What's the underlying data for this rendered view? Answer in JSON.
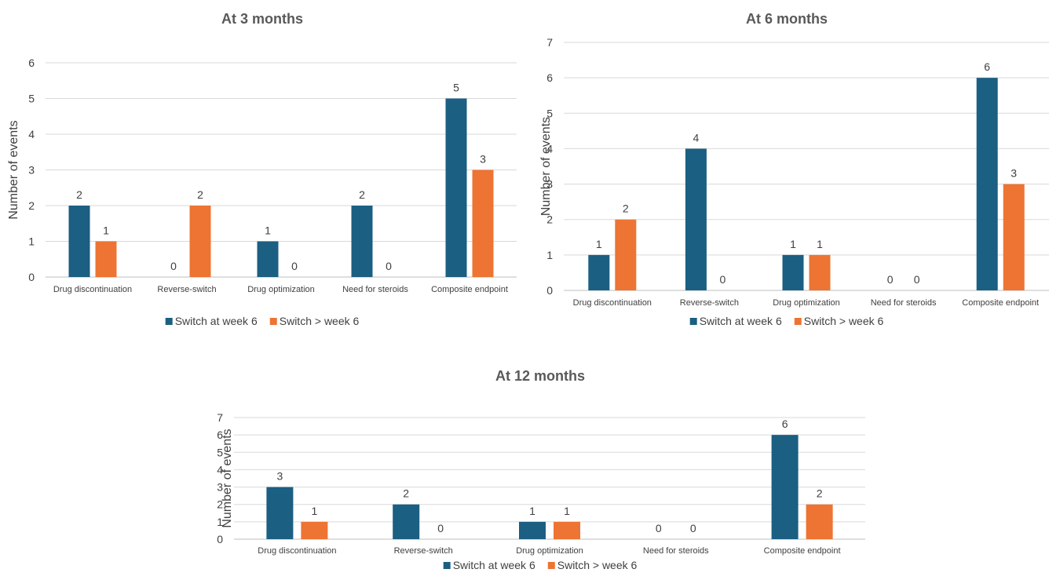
{
  "colors": {
    "series_1": "#1b5f82",
    "series_2": "#ed7433"
  },
  "chart_data": [
    {
      "type": "bar",
      "title": "At 3 months",
      "ylabel": "Number of events",
      "ylim": [
        0,
        6
      ],
      "y_ticks": [
        "0",
        "1",
        "2",
        "3",
        "4",
        "5",
        "6"
      ],
      "categories": [
        "Drug discontinuation",
        "Reverse-switch",
        "Drug optimization",
        "Need for steroids",
        "Composite endpoint"
      ],
      "series": [
        {
          "name": "Switch at week 6",
          "values": [
            2,
            0,
            1,
            2,
            5
          ]
        },
        {
          "name": "Switch > week 6",
          "values": [
            1,
            2,
            0,
            0,
            3
          ]
        }
      ],
      "data_labels": [
        [
          "2",
          "0",
          "1",
          "2",
          "5"
        ],
        [
          "1",
          "2",
          "0",
          "0",
          "3"
        ]
      ],
      "grid": true,
      "legend": "bottom"
    },
    {
      "type": "bar",
      "title": "At 6 months",
      "ylabel": "Number of events",
      "ylim": [
        0,
        7
      ],
      "y_ticks": [
        "0",
        "1",
        "2",
        "3",
        "4",
        "5",
        "6",
        "7"
      ],
      "categories": [
        "Drug discontinuation",
        "Reverse-switch",
        "Drug optimization",
        "Need for steroids",
        "Composite endpoint"
      ],
      "series": [
        {
          "name": "Switch at week 6",
          "values": [
            1,
            4,
            1,
            0,
            6
          ]
        },
        {
          "name": "Switch > week 6",
          "values": [
            2,
            0,
            1,
            0,
            3
          ]
        }
      ],
      "data_labels": [
        [
          "1",
          "4",
          "1",
          "0",
          "6"
        ],
        [
          "2",
          "0",
          "1",
          "0",
          "3"
        ]
      ],
      "grid": true,
      "legend": "bottom"
    },
    {
      "type": "bar",
      "title": "At 12 months",
      "ylabel": "Number of events",
      "ylim": [
        0,
        7
      ],
      "y_ticks": [
        "0",
        "1",
        "2",
        "3",
        "4",
        "5",
        "6",
        "7"
      ],
      "categories": [
        "Drug discontinuation",
        "Reverse-switch",
        "Drug optimization",
        "Need for steroids",
        "Composite endpoint"
      ],
      "series": [
        {
          "name": "Switch at week 6",
          "values": [
            3,
            2,
            1,
            0,
            6
          ]
        },
        {
          "name": "Switch > week 6",
          "values": [
            1,
            0,
            1,
            0,
            2
          ]
        }
      ],
      "data_labels": [
        [
          "3",
          "2",
          "1",
          "0",
          "6"
        ],
        [
          "1",
          "0",
          "1",
          "0",
          "2"
        ]
      ],
      "grid": true,
      "legend": "bottom"
    }
  ]
}
